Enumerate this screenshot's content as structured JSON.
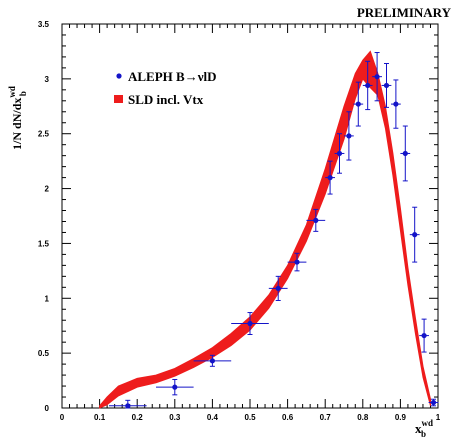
{
  "chart_data": {
    "type": "line",
    "header": "PRELIMINARY",
    "xlabel_main": "x",
    "xlabel_sup": "wd",
    "xlabel_sub": "b",
    "ylabel_main": "1/N dN/dx",
    "ylabel_sup": "wd",
    "ylabel_sub": "b",
    "xlim": [
      0,
      1
    ],
    "ylim": [
      0,
      3.5
    ],
    "x_ticks": [
      0,
      0.1,
      0.2,
      0.3,
      0.4,
      0.5,
      0.6,
      0.7,
      0.8,
      0.9,
      1
    ],
    "x_tick_labels": [
      "0",
      "0.1",
      "0.2",
      "0.3",
      "0.4",
      "0.5",
      "0.6",
      "0.7",
      "0.8",
      "0.9",
      "1"
    ],
    "y_ticks": [
      0,
      0.5,
      1,
      1.5,
      2,
      2.5,
      3,
      3.5
    ],
    "y_tick_labels": [
      "0",
      "0.5",
      "1",
      "1.5",
      "2",
      "2.5",
      "3",
      "3.5"
    ],
    "series": [
      {
        "name": "ALEPH B→νlD",
        "kind": "points",
        "color": "#1414c8",
        "points": [
          {
            "x": 0.175,
            "y": 0.02,
            "xerr": 0.05,
            "yerr": 0.05
          },
          {
            "x": 0.3,
            "y": 0.19,
            "xerr": 0.05,
            "yerr": 0.07
          },
          {
            "x": 0.4,
            "y": 0.43,
            "xerr": 0.05,
            "yerr": 0.05
          },
          {
            "x": 0.5,
            "y": 0.77,
            "xerr": 0.05,
            "yerr": 0.1
          },
          {
            "x": 0.575,
            "y": 1.09,
            "xerr": 0.025,
            "yerr": 0.11
          },
          {
            "x": 0.625,
            "y": 1.33,
            "xerr": 0.025,
            "yerr": 0.08
          },
          {
            "x": 0.675,
            "y": 1.71,
            "xerr": 0.025,
            "yerr": 0.1
          },
          {
            "x": 0.713,
            "y": 2.1,
            "xerr": 0.013,
            "yerr": 0.15
          },
          {
            "x": 0.738,
            "y": 2.32,
            "xerr": 0.013,
            "yerr": 0.18
          },
          {
            "x": 0.763,
            "y": 2.48,
            "xerr": 0.013,
            "yerr": 0.22
          },
          {
            "x": 0.788,
            "y": 2.77,
            "xerr": 0.013,
            "yerr": 0.2
          },
          {
            "x": 0.813,
            "y": 2.94,
            "xerr": 0.013,
            "yerr": 0.22
          },
          {
            "x": 0.838,
            "y": 3.02,
            "xerr": 0.013,
            "yerr": 0.22
          },
          {
            "x": 0.863,
            "y": 2.94,
            "xerr": 0.013,
            "yerr": 0.2
          },
          {
            "x": 0.888,
            "y": 2.77,
            "xerr": 0.013,
            "yerr": 0.22
          },
          {
            "x": 0.913,
            "y": 2.32,
            "xerr": 0.013,
            "yerr": 0.25
          },
          {
            "x": 0.938,
            "y": 1.58,
            "xerr": 0.013,
            "yerr": 0.25
          },
          {
            "x": 0.963,
            "y": 0.66,
            "xerr": 0.013,
            "yerr": 0.15
          },
          {
            "x": 0.988,
            "y": 0.05,
            "xerr": 0.013,
            "yerr": 0.03
          }
        ]
      },
      {
        "name": "SLD incl. Vtx",
        "kind": "band",
        "color": "#ee1c1c",
        "x": [
          0.1,
          0.12,
          0.15,
          0.2,
          0.25,
          0.3,
          0.35,
          0.4,
          0.45,
          0.5,
          0.55,
          0.6,
          0.65,
          0.7,
          0.75,
          0.78,
          0.8,
          0.82,
          0.84,
          0.86,
          0.88,
          0.9,
          0.92,
          0.94,
          0.96,
          0.98
        ],
        "upper": [
          0.02,
          0.1,
          0.2,
          0.27,
          0.3,
          0.36,
          0.45,
          0.55,
          0.68,
          0.83,
          1.03,
          1.3,
          1.67,
          2.18,
          2.75,
          3.05,
          3.17,
          3.25,
          3.05,
          2.75,
          2.32,
          1.82,
          1.28,
          0.82,
          0.38,
          0.08
        ],
        "lower": [
          0.0,
          0.03,
          0.11,
          0.19,
          0.23,
          0.29,
          0.37,
          0.46,
          0.57,
          0.71,
          0.91,
          1.18,
          1.52,
          1.95,
          2.45,
          2.82,
          3.0,
          2.92,
          2.85,
          2.55,
          2.12,
          1.62,
          1.12,
          0.68,
          0.28,
          0.02
        ]
      }
    ],
    "legend": {
      "placement": "top-left",
      "entries": [
        "ALEPH B→νlD",
        "SLD incl. Vtx"
      ]
    }
  }
}
